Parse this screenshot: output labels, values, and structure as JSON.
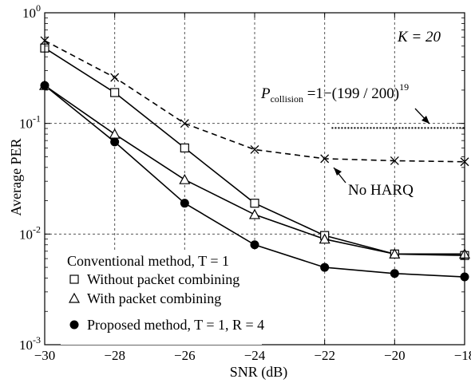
{
  "chart_data": {
    "type": "line",
    "xlabel": "SNR (dB)",
    "ylabel": "Average PER",
    "xlim": [
      -30,
      -18
    ],
    "ylim": [
      0.001,
      1
    ],
    "yscale": "log",
    "grid": true,
    "x_ticks": [
      -30,
      -28,
      -26,
      -24,
      -22,
      -20,
      -18
    ],
    "x_tick_labels": [
      "−30",
      "−28",
      "−26",
      "−24",
      "−22",
      "−20",
      "−18"
    ],
    "y_ticks": [
      {
        "value": 0.001,
        "base": "10",
        "exp": "-3"
      },
      {
        "value": 0.01,
        "base": "10",
        "exp": "-2"
      },
      {
        "value": 0.1,
        "base": "10",
        "exp": "-1"
      },
      {
        "value": 1,
        "base": "10",
        "exp": "0"
      }
    ],
    "x": [
      -30,
      -28,
      -26,
      -24,
      -22,
      -20,
      -18
    ],
    "series": [
      {
        "legend": "Without packet combining",
        "marker": "square",
        "style": "solid",
        "values": [
          0.48,
          0.19,
          0.06,
          0.019,
          0.0097,
          0.0066,
          0.0064
        ]
      },
      {
        "legend": "With packet combining",
        "marker": "triangle",
        "style": "solid",
        "values": [
          0.22,
          0.08,
          0.031,
          0.015,
          0.009,
          0.0066,
          0.0066
        ]
      },
      {
        "legend": "Proposed method, T = 1, R = 4",
        "marker": "circle",
        "style": "solid",
        "values": [
          0.22,
          0.068,
          0.019,
          0.008,
          0.005,
          0.0044,
          0.0041
        ]
      },
      {
        "legend": "",
        "marker": "x",
        "style": "dashed",
        "values": [
          0.56,
          0.26,
          0.1,
          0.058,
          0.048,
          0.046,
          0.045
        ]
      }
    ],
    "collision_line": {
      "x": [
        -21.8,
        -18
      ],
      "value": 0.091
    },
    "legend_heading": "Conventional method, T = 1",
    "legend_position": "bottom-left",
    "annotations": {
      "k_label": "K = 20",
      "p_collision": {
        "symbol": "P",
        "subscript": "collision",
        "expr": " =1−(199 / 200)",
        "exponent": "19"
      },
      "no_harq": "No HARQ"
    }
  }
}
